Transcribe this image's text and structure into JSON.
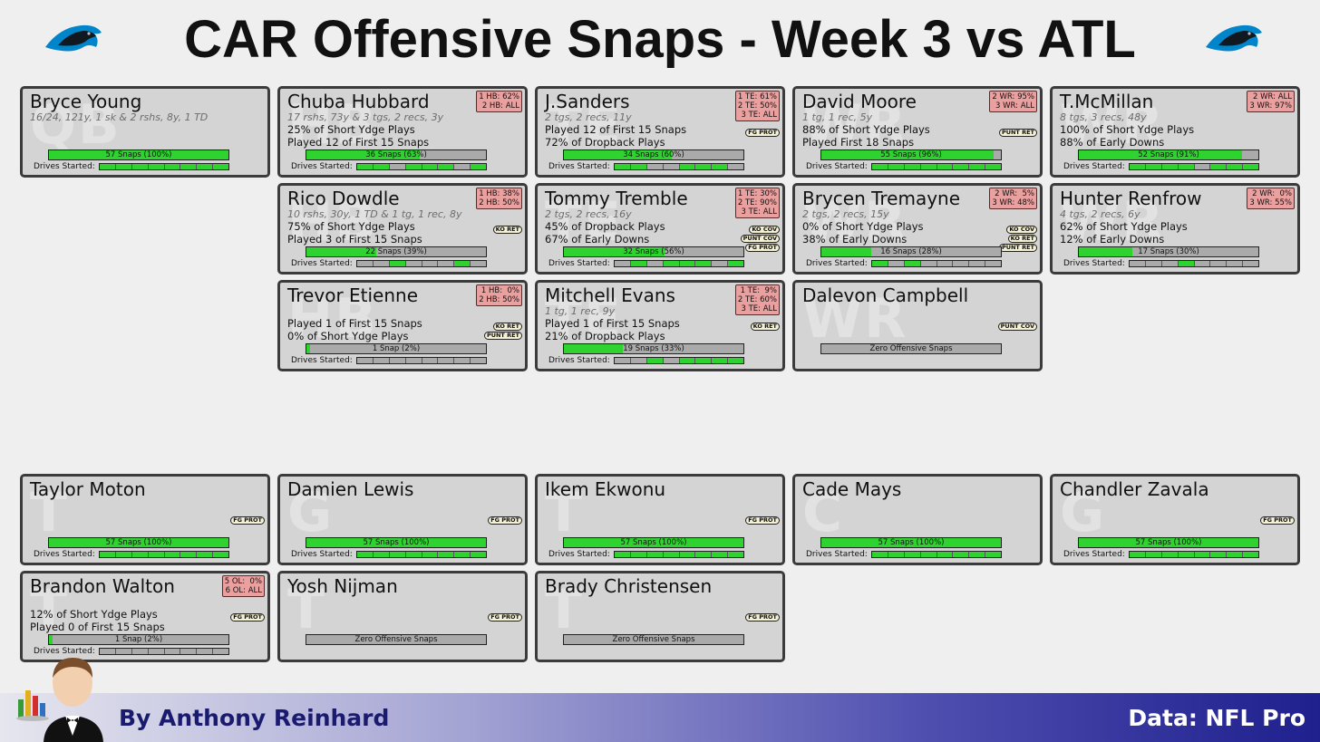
{
  "title": "CAR Offensive Snaps - Week 3 vs ATL",
  "footer": {
    "byline": "By Anthony Reinhard",
    "source": "Data: NFL Pro"
  },
  "colors": {
    "snap_fill": "#2fd32f",
    "bar_empty": "#aaaaaa",
    "badge": "#eba0a0",
    "card": "#d4d4d4",
    "tag": "#f5f1d4"
  },
  "icons": {
    "team_logo": "panthers-logo-icon",
    "mascot": "butler-mascot-icon"
  },
  "chart_data": {
    "type": "table",
    "total_snaps": 57,
    "players": [
      {
        "name": "Bryce Young",
        "pos": "QB",
        "stat": "16/24, 121y, 1 sk & 2 rshs, 8y, 1 TD",
        "line1": "",
        "line2": "",
        "badge": [],
        "tags": [],
        "snaps": 57,
        "pct": 1.0,
        "snap_label": "57 Snaps (100%)",
        "drives": [
          1,
          1,
          1,
          1,
          1,
          1,
          1,
          1
        ]
      },
      {
        "name": "Chuba Hubbard",
        "pos": "HB",
        "stat": "17 rshs, 73y & 3 tgs, 2 recs, 3y",
        "line1": "25% of Short Ydge Plays",
        "line2": "Played 12 of First 15 Snaps",
        "badge": [
          "1 HB: 62%",
          "2 HB: ALL"
        ],
        "tags": [],
        "snaps": 36,
        "pct": 0.63,
        "snap_label": "36 Snaps (63%)",
        "drives": [
          1,
          1,
          0,
          1,
          1,
          1,
          0,
          1
        ]
      },
      {
        "name": "J.Sanders",
        "pos": "TE",
        "stat": "2 tgs, 2 recs, 11y",
        "line1": "Played 12 of First 15 Snaps",
        "line2": "72% of Dropback Plays",
        "badge": [
          "1 TE: 61%",
          "2 TE: 50%",
          "3 TE: ALL"
        ],
        "tags": [
          "FG PROT"
        ],
        "snaps": 34,
        "pct": 0.6,
        "snap_label": "34 Snaps (60%)",
        "drives": [
          1,
          1,
          0,
          0,
          1,
          1,
          1,
          0
        ]
      },
      {
        "name": "David Moore",
        "pos": "WR",
        "stat": "1 tg, 1 rec, 5y",
        "line1": "88% of Short Ydge Plays",
        "line2": "Played First 18 Snaps",
        "badge": [
          "2 WR: 95%",
          "3 WR: ALL"
        ],
        "tags": [
          "PUNT RET"
        ],
        "snaps": 55,
        "pct": 0.96,
        "snap_label": "55 Snaps (96%)",
        "drives": [
          1,
          1,
          1,
          1,
          1,
          1,
          1,
          1
        ]
      },
      {
        "name": "T.McMillan",
        "pos": "WR",
        "stat": "8 tgs, 3 recs, 48y",
        "line1": "100% of Short Ydge Plays",
        "line2": "88% of Early Downs",
        "badge": [
          "2 WR: ALL",
          "3 WR: 97%"
        ],
        "tags": [],
        "snaps": 52,
        "pct": 0.91,
        "snap_label": "52 Snaps (91%)",
        "drives": [
          1,
          1,
          1,
          1,
          0,
          1,
          1,
          1
        ]
      },
      {
        "name": "Rico Dowdle",
        "pos": "HB",
        "stat": "10 rshs, 30y, 1 TD & 1 tg, 1 rec, 8y",
        "line1": "75% of Short Ydge Plays",
        "line2": "Played 3 of First 15 Snaps",
        "badge": [
          "1 HB: 38%",
          "2 HB: 50%"
        ],
        "tags": [
          "KO RET"
        ],
        "snaps": 22,
        "pct": 0.39,
        "snap_label": "22 Snaps (39%)",
        "drives": [
          0,
          0,
          1,
          0,
          0,
          0,
          1,
          0
        ]
      },
      {
        "name": "Tommy Tremble",
        "pos": "TE",
        "stat": "2 tgs, 2 recs, 16y",
        "line1": "45% of Dropback Plays",
        "line2": "67% of Early Downs",
        "badge": [
          "1 TE: 30%",
          "2 TE: 90%",
          "3 TE: ALL"
        ],
        "tags": [
          "KO COV",
          "PUNT COV",
          "FG PROT"
        ],
        "snaps": 32,
        "pct": 0.56,
        "snap_label": "32 Snaps (56%)",
        "drives": [
          0,
          1,
          0,
          1,
          1,
          1,
          0,
          1
        ]
      },
      {
        "name": "Brycen Tremayne",
        "pos": "WR",
        "stat": "2 tgs, 2 recs, 15y",
        "line1": "0% of Short Ydge Plays",
        "line2": "38% of Early Downs",
        "badge": [
          "2 WR:  5%",
          "3 WR: 48%"
        ],
        "tags": [
          "KO COV",
          "KO RET",
          "PUNT RET"
        ],
        "snaps": 16,
        "pct": 0.28,
        "snap_label": "16 Snaps (28%)",
        "drives": [
          1,
          0,
          1,
          0,
          0,
          0,
          0,
          0
        ]
      },
      {
        "name": "Hunter Renfrow",
        "pos": "WR",
        "stat": "4 tgs, 2 recs, 6y",
        "line1": "62% of Short Ydge Plays",
        "line2": "12% of Early Downs",
        "badge": [
          "2 WR:  0%",
          "3 WR: 55%"
        ],
        "tags": [],
        "snaps": 17,
        "pct": 0.3,
        "snap_label": "17 Snaps (30%)",
        "drives": [
          0,
          0,
          0,
          1,
          0,
          0,
          0,
          0
        ]
      },
      {
        "name": "Trevor Etienne",
        "pos": "HB",
        "stat": "",
        "line1": "Played 1 of First 15 Snaps",
        "line2": "0% of Short Ydge Plays",
        "badge": [
          "1 HB:  0%",
          "2 HB: 50%"
        ],
        "tags": [
          "KO RET",
          "PUNT RET"
        ],
        "snaps": 1,
        "pct": 0.02,
        "snap_label": "1 Snap (2%)",
        "drives": [
          0,
          0,
          0,
          0,
          0,
          0,
          0,
          0
        ]
      },
      {
        "name": "Mitchell Evans",
        "pos": "TE",
        "stat": "1 tg, 1 rec, 9y",
        "line1": "Played 1 of First 15 Snaps",
        "line2": "21% of Dropback Plays",
        "badge": [
          "1 TE:  9%",
          "2 TE: 60%",
          "3 TE: ALL"
        ],
        "tags": [
          "KO RET"
        ],
        "snaps": 19,
        "pct": 0.33,
        "snap_label": "19 Snaps (33%)",
        "drives": [
          0,
          0,
          1,
          0,
          1,
          1,
          1,
          1
        ]
      },
      {
        "name": "Dalevon Campbell",
        "pos": "WR",
        "stat": "",
        "line1": "",
        "line2": "",
        "badge": [],
        "tags": [
          "PUNT COV"
        ],
        "snaps": 0,
        "pct": 0,
        "snap_label": "Zero Offensive Snaps",
        "drives": null
      },
      {
        "name": "Taylor Moton",
        "pos": "T",
        "stat": "",
        "line1": "",
        "line2": "",
        "badge": [],
        "tags": [
          "FG PROT"
        ],
        "snaps": 57,
        "pct": 1.0,
        "snap_label": "57 Snaps (100%)",
        "drives": [
          1,
          1,
          1,
          1,
          1,
          1,
          1,
          1
        ]
      },
      {
        "name": "Damien Lewis",
        "pos": "G",
        "stat": "",
        "line1": "",
        "line2": "",
        "badge": [],
        "tags": [
          "FG PROT"
        ],
        "snaps": 57,
        "pct": 1.0,
        "snap_label": "57 Snaps (100%)",
        "drives": [
          1,
          1,
          1,
          1,
          1,
          1,
          1,
          1
        ]
      },
      {
        "name": "Ikem Ekwonu",
        "pos": "T",
        "stat": "",
        "line1": "",
        "line2": "",
        "badge": [],
        "tags": [
          "FG PROT"
        ],
        "snaps": 57,
        "pct": 1.0,
        "snap_label": "57 Snaps (100%)",
        "drives": [
          1,
          1,
          1,
          1,
          1,
          1,
          1,
          1
        ]
      },
      {
        "name": "Cade Mays",
        "pos": "C",
        "stat": "",
        "line1": "",
        "line2": "",
        "badge": [],
        "tags": [],
        "snaps": 57,
        "pct": 1.0,
        "snap_label": "57 Snaps (100%)",
        "drives": [
          1,
          1,
          1,
          1,
          1,
          1,
          1,
          1
        ]
      },
      {
        "name": "Chandler Zavala",
        "pos": "G",
        "stat": "",
        "line1": "",
        "line2": "",
        "badge": [],
        "tags": [
          "FG PROT"
        ],
        "snaps": 57,
        "pct": 1.0,
        "snap_label": "57 Snaps (100%)",
        "drives": [
          1,
          1,
          1,
          1,
          1,
          1,
          1,
          1
        ]
      },
      {
        "name": "Brandon Walton",
        "pos": "T",
        "stat": "",
        "line1": "12% of Short Ydge Plays",
        "line2": "Played 0 of First 15 Snaps",
        "badge": [
          "5 OL:  0%",
          "6 OL: ALL"
        ],
        "tags": [
          "FG PROT"
        ],
        "snaps": 1,
        "pct": 0.02,
        "snap_label": "1 Snap (2%)",
        "drives": [
          0,
          0,
          0,
          0,
          0,
          0,
          0,
          0
        ]
      },
      {
        "name": "Yosh Nijman",
        "pos": "T",
        "stat": "",
        "line1": "",
        "line2": "",
        "badge": [],
        "tags": [
          "FG PROT"
        ],
        "snaps": 0,
        "pct": 0,
        "snap_label": "Zero Offensive Snaps",
        "drives": null
      },
      {
        "name": "Brady Christensen",
        "pos": "T",
        "stat": "",
        "line1": "",
        "line2": "",
        "badge": [],
        "tags": [
          "FG PROT"
        ],
        "snaps": 0,
        "pct": 0,
        "snap_label": "Zero Offensive Snaps",
        "drives": null
      }
    ],
    "drives_label": "Drives Started:"
  }
}
